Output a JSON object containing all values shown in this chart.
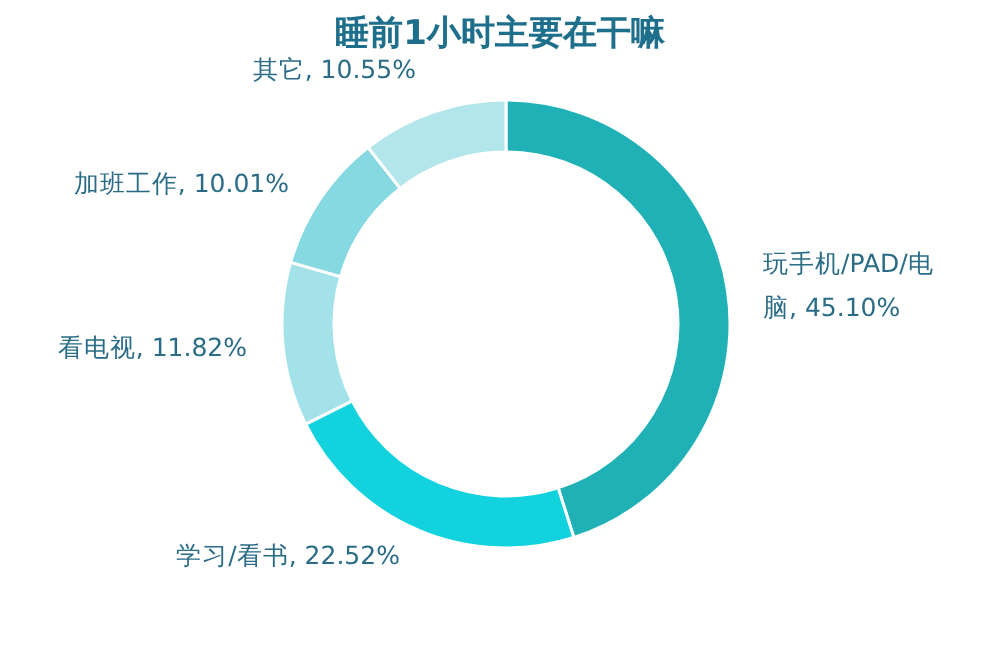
{
  "chart_data": {
    "type": "donut",
    "title": "睡前1小时主要在干嘛",
    "categories": [
      "玩手机/PAD/电脑",
      "学习/看书",
      "看电视",
      "加班工作",
      "其它"
    ],
    "values": [
      45.1,
      22.52,
      11.82,
      10.01,
      10.55
    ],
    "value_labels": [
      "45.10%",
      "22.52%",
      "11.82%",
      "10.01%",
      "10.55%"
    ],
    "colors": [
      "#1fb1b6",
      "#12d2de",
      "#a3e2e8",
      "#86d9e1",
      "#b3e6ea"
    ]
  }
}
